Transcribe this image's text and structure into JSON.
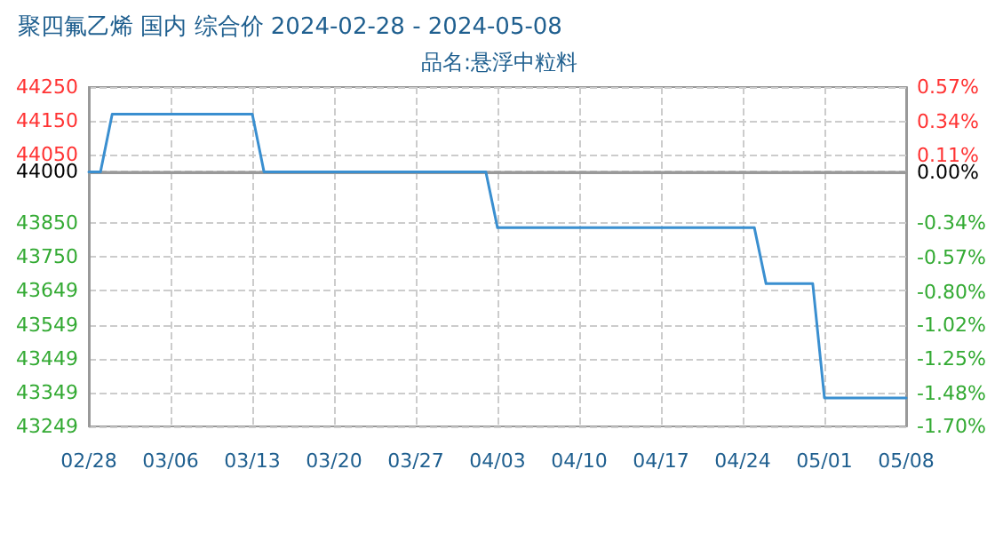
{
  "chart_data": {
    "type": "line",
    "title": "聚四氟乙烯 国内 综合价 2024-02-28 - 2024-05-08",
    "subtitle": "品名:悬浮中粒料",
    "x": [
      "2024-02-28",
      "2024-02-29",
      "2024-03-01",
      "2024-03-13",
      "2024-03-14",
      "2024-04-02",
      "2024-04-03",
      "2024-04-25",
      "2024-04-26",
      "2024-04-30",
      "2024-05-01",
      "2024-05-08"
    ],
    "series": [
      {
        "color": "#3a8fd0",
        "values": [
          44000,
          44000,
          44170,
          44170,
          44000,
          44000,
          43835,
          43835,
          43670,
          43670,
          43333,
          43333
        ]
      }
    ],
    "xlim": [
      "2024-02-28",
      "2024-05-08"
    ],
    "xticks": [
      {
        "value": "2024-02-28",
        "label": "02/28"
      },
      {
        "value": "2024-03-06",
        "label": "03/06"
      },
      {
        "value": "2024-03-13",
        "label": "03/13"
      },
      {
        "value": "2024-03-20",
        "label": "03/20"
      },
      {
        "value": "2024-03-27",
        "label": "03/27"
      },
      {
        "value": "2024-04-03",
        "label": "04/03"
      },
      {
        "value": "2024-04-10",
        "label": "04/10"
      },
      {
        "value": "2024-04-17",
        "label": "04/17"
      },
      {
        "value": "2024-04-24",
        "label": "04/24"
      },
      {
        "value": "2024-05-01",
        "label": "05/01"
      },
      {
        "value": "2024-05-08",
        "label": "05/08"
      }
    ],
    "ylim": [
      43249,
      44250
    ],
    "yticks": [
      43249,
      43349,
      43449,
      43549,
      43649,
      43750,
      43850,
      44000,
      44050,
      44150,
      44250
    ],
    "y2lim": [
      -1.7,
      0.57
    ],
    "y2ticks": [
      {
        "value": -1.7,
        "label": "-1.70%"
      },
      {
        "value": -1.48,
        "label": "-1.48%"
      },
      {
        "value": -1.25,
        "label": "-1.25%"
      },
      {
        "value": -1.02,
        "label": "-1.02%"
      },
      {
        "value": -0.8,
        "label": "-0.80%"
      },
      {
        "value": -0.57,
        "label": "-0.57%"
      },
      {
        "value": -0.34,
        "label": "-0.34%"
      },
      {
        "value": 0,
        "label": "0.00%"
      },
      {
        "value": 0.11,
        "label": "0.11%"
      },
      {
        "value": 0.34,
        "label": "0.34%"
      },
      {
        "value": 0.57,
        "label": "0.57%"
      }
    ],
    "ref_lines": [
      {
        "axis": "y",
        "value": 44000,
        "color": "#999999"
      }
    ],
    "grid": true,
    "marker": "none",
    "line_style": "solid"
  }
}
